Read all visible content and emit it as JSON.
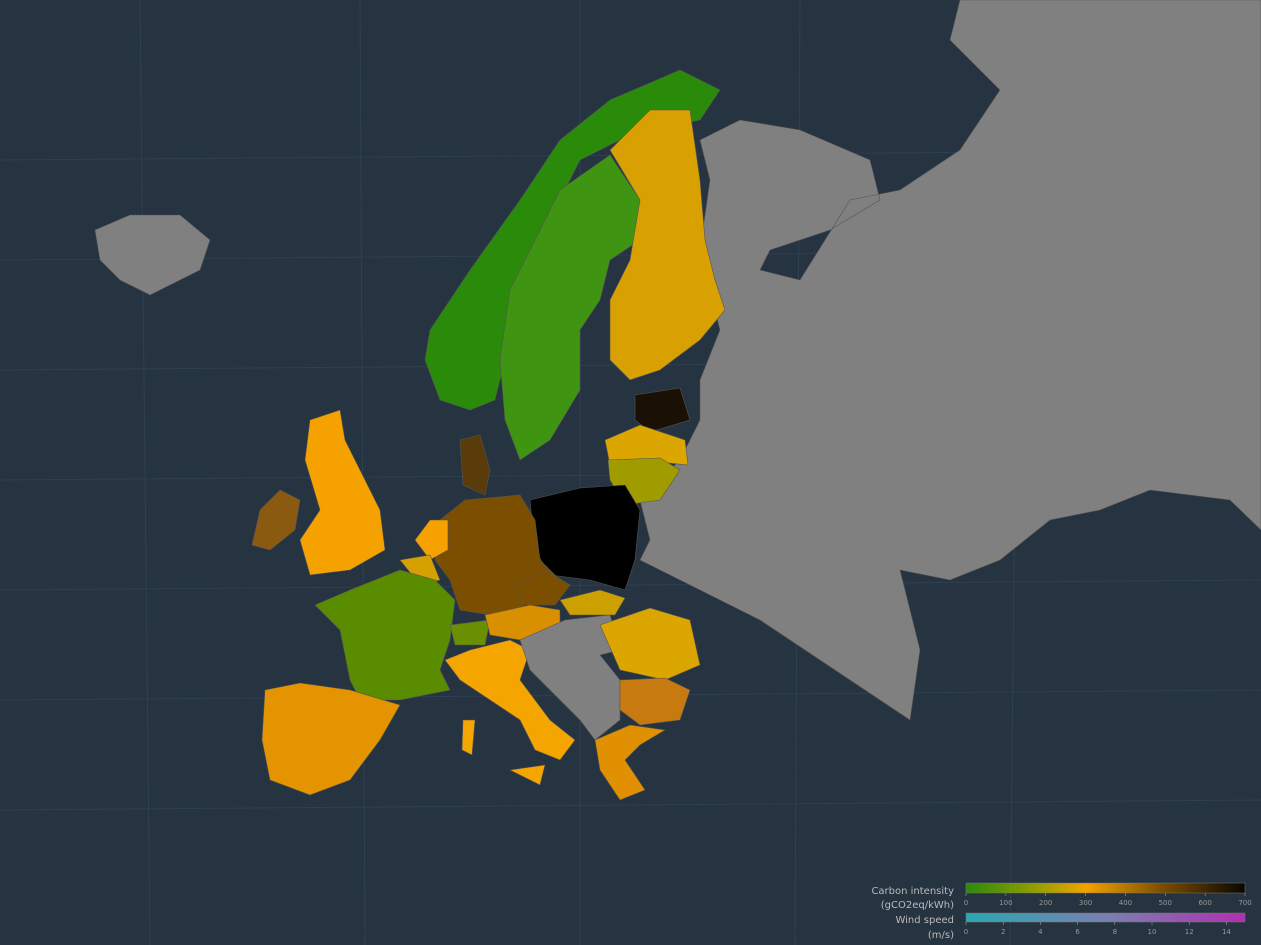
{
  "legend": {
    "carbon_intensity": {
      "title": "Carbon intensity",
      "unit": "(gCO2eq/kWh)",
      "range": [
        0,
        700
      ],
      "ticks": [
        0,
        100,
        200,
        300,
        400,
        500,
        600,
        700
      ]
    },
    "wind_speed": {
      "title": "Wind speed",
      "unit": "(m/s)",
      "range": [
        0,
        15
      ],
      "ticks": [
        0,
        2,
        4,
        6,
        8,
        10,
        12,
        14
      ]
    }
  }
}
